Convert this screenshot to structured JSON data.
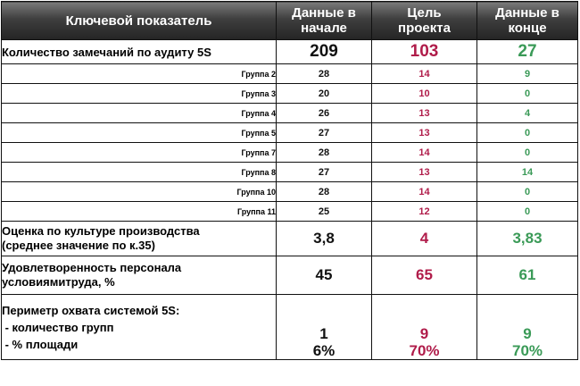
{
  "header": {
    "indicator_label": "Ключевой показатель",
    "start_label": [
      "Данные в",
      "начале"
    ],
    "goal_label": [
      "Цель",
      "проекта"
    ],
    "end_label": [
      "Данные в",
      "конце"
    ]
  },
  "total_row": {
    "label": "Количество замечаний по аудиту 5S",
    "start": "209",
    "goal": "103",
    "end": "27"
  },
  "groups": [
    {
      "label": "Группа 2",
      "start": "28",
      "goal": "14",
      "end": "9"
    },
    {
      "label": "Группа 3",
      "start": "20",
      "goal": "10",
      "end": "0"
    },
    {
      "label": "Группа 4",
      "start": "26",
      "goal": "13",
      "end": "4"
    },
    {
      "label": "Группа 5",
      "start": "27",
      "goal": "13",
      "end": "0"
    },
    {
      "label": "Группа 7",
      "start": "28",
      "goal": "14",
      "end": "0"
    },
    {
      "label": "Группа 8",
      "start": "27",
      "goal": "13",
      "end": "14"
    },
    {
      "label": "Группа 10",
      "start": "28",
      "goal": "14",
      "end": "0"
    },
    {
      "label": "Группа 11",
      "start": "25",
      "goal": "12",
      "end": "0"
    }
  ],
  "culture_row": {
    "label_lines": [
      "Оценка по культуре производства",
      "(среднее значение по к.35)"
    ],
    "start": "3,8",
    "goal": "4",
    "end": "3,83"
  },
  "satisfaction_row": {
    "label_lines": [
      "Удовлетворенность персонала",
      "условиямитруда, %"
    ],
    "start": "45",
    "goal": "65",
    "end": "61"
  },
  "perimeter_row": {
    "label_lines": [
      "Периметр охвата системой 5S:",
      " - количество групп",
      " - % площади"
    ],
    "start": [
      "1",
      "6%"
    ],
    "goal": [
      "9",
      "70%"
    ],
    "end": [
      "9",
      "70%"
    ]
  },
  "colors": {
    "header_bg": "#3e3e3e",
    "goal": "#b01c4a",
    "end": "#3a9a57",
    "start": "#111111"
  }
}
